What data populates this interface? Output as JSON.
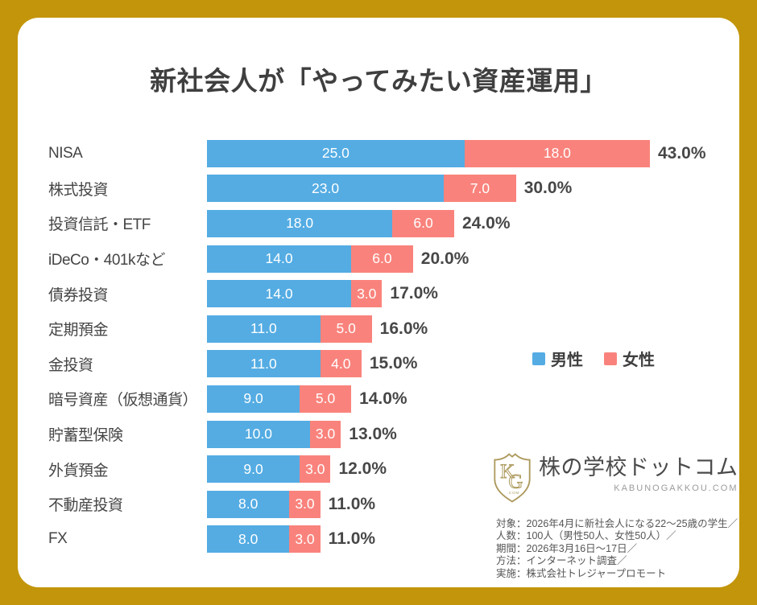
{
  "frame": {
    "border_color": "#C3950B",
    "canvas_color": "#FFFFFF"
  },
  "title": "新社会人が「やってみたい資産運用」",
  "chart_data": {
    "type": "bar",
    "stacked": true,
    "orientation": "horizontal",
    "title": "新社会人が「やってみたい資産運用」",
    "categories": [
      "NISA",
      "株式投資",
      "投資信託・ETF",
      "iDeCo・401kなど",
      "債券投資",
      "定期預金",
      "金投資",
      "暗号資産（仮想通貨）",
      "貯蓄型保険",
      "外貨預金",
      "不動産投資",
      "FX"
    ],
    "series": [
      {
        "name": "男性",
        "color": "#54ACE3",
        "values": [
          25.0,
          23.0,
          18.0,
          14.0,
          14.0,
          11.0,
          11.0,
          9.0,
          10.0,
          9.0,
          8.0,
          8.0
        ]
      },
      {
        "name": "女性",
        "color": "#F9837C",
        "values": [
          18.0,
          7.0,
          6.0,
          6.0,
          3.0,
          5.0,
          4.0,
          5.0,
          3.0,
          3.0,
          3.0,
          3.0
        ]
      }
    ],
    "totals": [
      43.0,
      30.0,
      24.0,
      20.0,
      17.0,
      16.0,
      15.0,
      14.0,
      13.0,
      12.0,
      11.0,
      11.0
    ],
    "total_suffix": "%",
    "xlim": [
      0,
      43
    ],
    "grid": false,
    "legend_position": "right-middle",
    "bar_value_labels": "inside-white",
    "total_labels": "right-of-bar-bold"
  },
  "legend": {
    "items": [
      {
        "label": "男性",
        "color": "#54ACE3"
      },
      {
        "label": "女性",
        "color": "#F9837C"
      }
    ]
  },
  "logo": {
    "icon": "kg-shield-icon",
    "icon_color": "#AE9B5F",
    "icon_letters": "KG",
    "icon_caption": ".COM",
    "name": "株の学校ドットコム",
    "domain": "KABUNOGAKKOU.COM"
  },
  "notes": {
    "lines": [
      "対象：2026年4月に新社会人になる22～25歳の学生／",
      "人数：100人（男性50人、女性50人）／",
      "期間：2026年3月16日～17日／",
      "方法：インターネット調査／",
      "実施：株式会社トレジャープロモート"
    ]
  }
}
